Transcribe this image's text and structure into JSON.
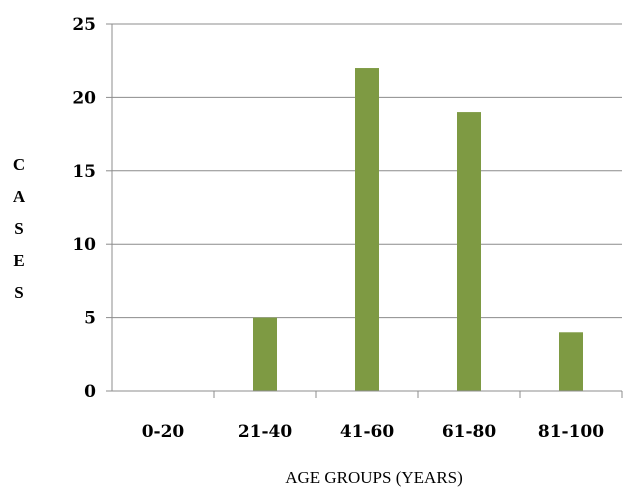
{
  "chart_data": {
    "type": "bar",
    "categories": [
      "0-20",
      "21-40",
      "41-60",
      "61-80",
      "81-100"
    ],
    "values": [
      0,
      5,
      22,
      19,
      4
    ],
    "xlabel": "AGE GROUPS (YEARS)",
    "ylabel": "CASES",
    "ylim": [
      0,
      25
    ],
    "yticks": [
      "0",
      "5",
      "10",
      "15",
      "20",
      "25"
    ],
    "grid": true,
    "legend": "none",
    "colors": {
      "bar": "#7E9A43",
      "grid": "#8C8C8C",
      "axis": "#8C8C8C"
    }
  }
}
